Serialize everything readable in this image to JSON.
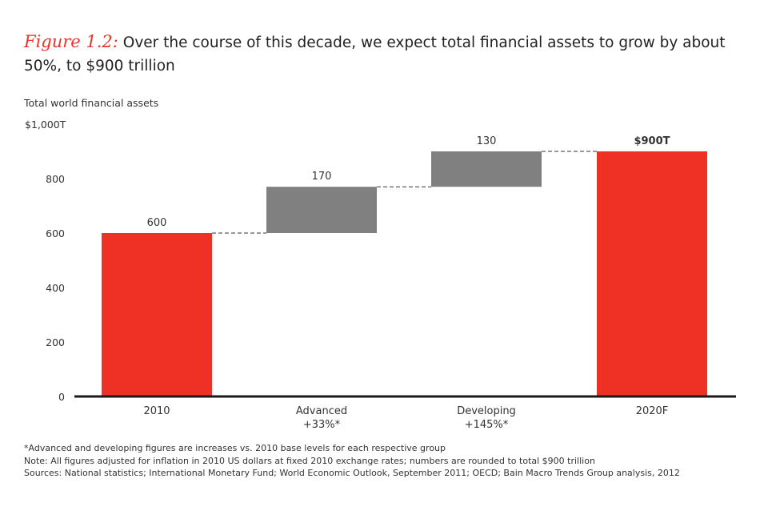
{
  "title": {
    "figure_label": "Figure 1.2:",
    "text": "Over the course of this decade, we expect total financial assets to grow by about 50%, to $900 trillion"
  },
  "chart_data": {
    "type": "waterfall",
    "subtitle": "Total world financial assets",
    "y_axis": {
      "min": 0,
      "max": 1000,
      "ticks": [
        0,
        200,
        400,
        600,
        800,
        1000
      ],
      "tick_labels": [
        "0",
        "200",
        "400",
        "600",
        "800",
        "$1,000T"
      ]
    },
    "categories": [
      {
        "label": "2010",
        "sublabel": "",
        "kind": "total",
        "start": 0,
        "value": 600,
        "value_label": "600",
        "bold": false
      },
      {
        "label": "Advanced",
        "sublabel": "+33%*",
        "kind": "increase",
        "start": 600,
        "value": 170,
        "value_label": "170",
        "bold": false
      },
      {
        "label": "Developing",
        "sublabel": "+145%*",
        "kind": "increase",
        "start": 770,
        "value": 130,
        "value_label": "130",
        "bold": false
      },
      {
        "label": "2020F",
        "sublabel": "",
        "kind": "total",
        "start": 0,
        "value": 900,
        "value_label": "$900T",
        "bold": true
      }
    ],
    "colors": {
      "total": "#ee3124",
      "increase": "#808080"
    }
  },
  "notes": [
    "*Advanced and developing figures are increases vs. 2010 base levels for each respective group",
    "Note: All figures adjusted for inflation in 2010 US dollars at fixed 2010 exchange rates; numbers are rounded to total $900 trillion",
    "Sources: National statistics; International Monetary Fund; World Economic Outlook, September 2011; OECD; Bain Macro Trends Group analysis, 2012"
  ]
}
